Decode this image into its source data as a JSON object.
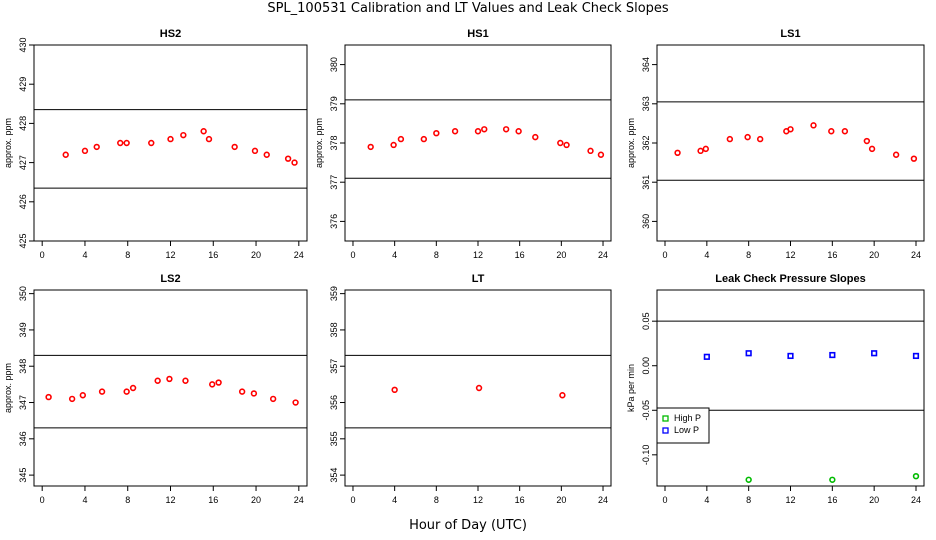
{
  "figure": {
    "title": "SPL_100531  Calibration and LT Values and Leak Check Slopes",
    "xlabel": "Hour of Day (UTC)"
  },
  "chart_data": [
    {
      "type": "scatter",
      "title": "HS2",
      "ylabel": "approx. ppm",
      "xlim": [
        0,
        24
      ],
      "xticks": [
        0,
        4,
        8,
        12,
        16,
        20,
        24
      ],
      "ylim": [
        425,
        430
      ],
      "yticks": [
        425,
        426,
        427,
        428,
        429,
        430
      ],
      "hlines": [
        428.35,
        426.35
      ],
      "series": [
        {
          "color": "#ff0000",
          "x": [
            2.2,
            4.0,
            5.1,
            7.3,
            7.9,
            10.2,
            12.0,
            13.2,
            15.1,
            15.6,
            18.0,
            19.9,
            21.0,
            23.0,
            23.6
          ],
          "y": [
            427.2,
            427.3,
            427.4,
            427.5,
            427.5,
            427.5,
            427.6,
            427.7,
            427.8,
            427.6,
            427.4,
            427.3,
            427.2,
            427.1,
            427.0
          ]
        }
      ]
    },
    {
      "type": "scatter",
      "title": "HS1",
      "ylabel": "approx. ppm",
      "xlim": [
        0,
        24
      ],
      "xticks": [
        0,
        4,
        8,
        12,
        16,
        20,
        24
      ],
      "ylim": [
        375.5,
        380.5
      ],
      "yticks": [
        376,
        377,
        378,
        379,
        380
      ],
      "hlines": [
        379.1,
        377.1
      ],
      "series": [
        {
          "color": "#ff0000",
          "x": [
            1.7,
            3.9,
            4.6,
            6.8,
            8.0,
            9.8,
            12.0,
            12.6,
            14.7,
            15.9,
            17.5,
            19.9,
            20.5,
            22.8,
            23.8
          ],
          "y": [
            377.9,
            377.95,
            378.1,
            378.1,
            378.25,
            378.3,
            378.3,
            378.35,
            378.35,
            378.3,
            378.15,
            378.0,
            377.95,
            377.8,
            377.7
          ]
        }
      ]
    },
    {
      "type": "scatter",
      "title": "LS1",
      "ylabel": "approx. ppm",
      "xlim": [
        0,
        24
      ],
      "xticks": [
        0,
        4,
        8,
        12,
        16,
        20,
        24
      ],
      "ylim": [
        359.5,
        364.5
      ],
      "yticks": [
        360,
        361,
        362,
        363,
        364
      ],
      "hlines": [
        363.05,
        361.05
      ],
      "series": [
        {
          "color": "#ff0000",
          "x": [
            1.2,
            3.4,
            3.9,
            6.2,
            7.9,
            9.1,
            11.6,
            12.0,
            14.2,
            15.9,
            17.2,
            19.3,
            19.8,
            22.1,
            23.8
          ],
          "y": [
            361.75,
            361.8,
            361.85,
            362.1,
            362.15,
            362.1,
            362.3,
            362.35,
            362.45,
            362.3,
            362.3,
            362.05,
            361.85,
            361.7,
            361.6
          ]
        }
      ]
    },
    {
      "type": "scatter",
      "title": "LS2",
      "ylabel": "approx. ppm",
      "xlim": [
        0,
        24
      ],
      "xticks": [
        0,
        4,
        8,
        12,
        16,
        20,
        24
      ],
      "ylim": [
        344.7,
        350.1
      ],
      "yticks": [
        345,
        346,
        347,
        348,
        349,
        350
      ],
      "hlines": [
        348.3,
        346.3
      ],
      "series": [
        {
          "color": "#ff0000",
          "x": [
            0.6,
            2.8,
            3.8,
            5.6,
            7.9,
            8.5,
            10.8,
            11.9,
            13.4,
            15.9,
            16.5,
            18.7,
            19.8,
            21.6,
            23.7
          ],
          "y": [
            347.15,
            347.1,
            347.2,
            347.3,
            347.3,
            347.4,
            347.6,
            347.65,
            347.6,
            347.5,
            347.55,
            347.3,
            347.25,
            347.1,
            347.0
          ]
        }
      ]
    },
    {
      "type": "scatter",
      "title": "LT",
      "ylabel": "",
      "xlim": [
        0,
        24
      ],
      "xticks": [
        0,
        4,
        8,
        12,
        16,
        20,
        24
      ],
      "ylim": [
        353.7,
        359.1
      ],
      "yticks": [
        354,
        355,
        356,
        357,
        358,
        359
      ],
      "hlines": [
        357.3,
        355.3
      ],
      "series": [
        {
          "color": "#ff0000",
          "x": [
            4.0,
            12.1,
            20.1
          ],
          "y": [
            356.35,
            356.4,
            356.2
          ]
        }
      ]
    },
    {
      "type": "scatter",
      "title": "Leak Check Pressure Slopes",
      "ylabel": "kPa per min",
      "xlim": [
        0,
        24
      ],
      "xticks": [
        0,
        4,
        8,
        12,
        16,
        20,
        24
      ],
      "ylim": [
        -0.135,
        0.085
      ],
      "yticks": [
        -0.1,
        -0.05,
        0.0,
        0.05
      ],
      "ytick_labels": [
        "-0.10",
        "-0.05",
        "0.00",
        "0.05"
      ],
      "hlines": [
        0.05,
        -0.05
      ],
      "legend": {
        "position": "bottom-left",
        "entries": [
          {
            "label": "High P",
            "color": "#00bb00"
          },
          {
            "label": "Low P",
            "color": "#0000ff"
          }
        ]
      },
      "series": [
        {
          "name": "High P",
          "color": "#00bb00",
          "x": [
            8.0,
            16.0,
            24.0
          ],
          "y": [
            -0.128,
            -0.128,
            -0.124
          ]
        },
        {
          "name": "Low P",
          "color": "#0000ff",
          "x": [
            4.0,
            8.0,
            12.0,
            16.0,
            20.0,
            24.0
          ],
          "y": [
            0.01,
            0.014,
            0.011,
            0.012,
            0.014,
            0.011
          ]
        }
      ]
    }
  ]
}
